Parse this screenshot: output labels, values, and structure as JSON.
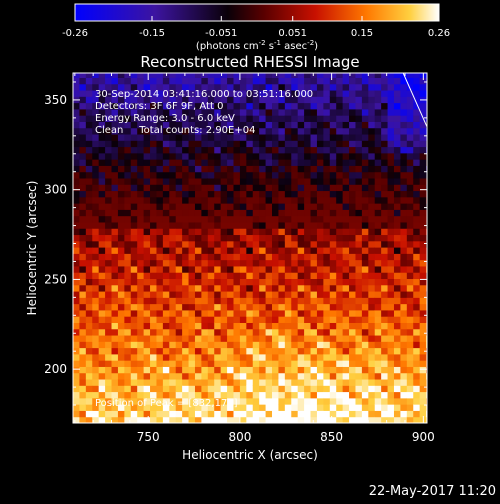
{
  "colorbar": {
    "ticks": [
      "-0.26",
      "-0.15",
      "-0.051",
      "0.051",
      "0.15",
      "0.26"
    ],
    "tick_values": [
      -0.26,
      -0.15,
      -0.051,
      0.051,
      0.15,
      0.26
    ],
    "range": [
      -0.26,
      0.26
    ],
    "units_prefix": "(photons cm",
    "units_sup1": "-2",
    "units_mid1": " s",
    "units_sup2": "-1",
    "units_mid2": " asec",
    "units_sup3": "-2",
    "units_suffix": ")"
  },
  "plot": {
    "title": "Reconstructed RHESSI Image",
    "annotations": [
      "30-Sep-2014 03:41:16.000 to 03:51:16.000",
      "Detectors: 3F 6F 9F, Att 0",
      "Energy Range: 3.0 - 6.0 keV",
      "Clean     Total counts: 2.90E+04"
    ],
    "peak_label": "Position of Peak = [832,171]",
    "footer_date": "22-May-2017 11:20"
  },
  "chart_data": {
    "type": "heatmap",
    "title": "Reconstructed RHESSI Image",
    "xlabel": "Heliocentric X (arcsec)",
    "ylabel": "Heliocentric Y (arcsec)",
    "xlim": [
      709,
      902
    ],
    "ylim": [
      170,
      365
    ],
    "x_ticks": [
      750,
      800,
      850,
      900
    ],
    "y_ticks": [
      200,
      250,
      300,
      350
    ],
    "peak": [
      832,
      171
    ],
    "colormap": "RHESSI (blue - black - red - yellow - white)",
    "limb_line": [
      [
        889,
        365
      ],
      [
        902,
        335
      ]
    ],
    "grid": false
  }
}
